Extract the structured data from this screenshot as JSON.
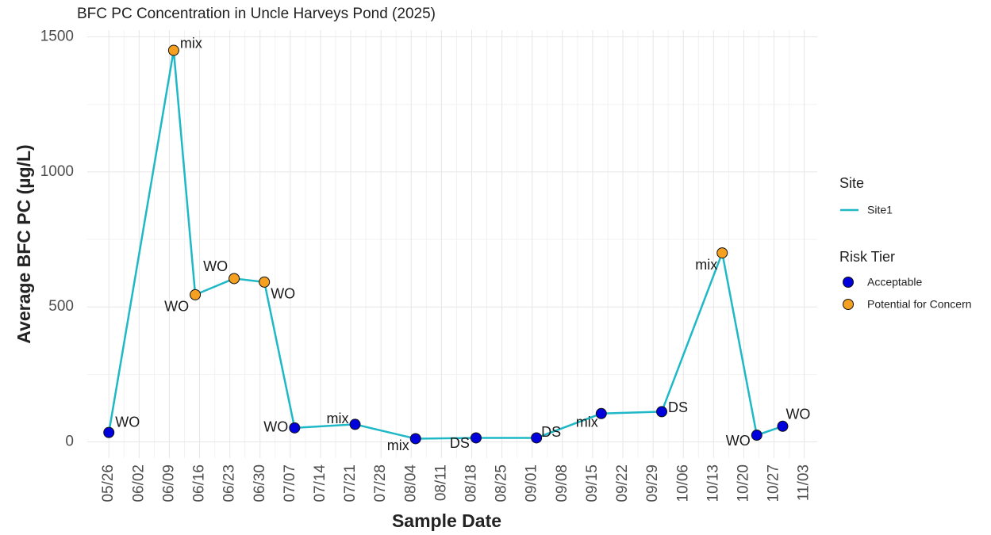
{
  "chart_data": {
    "type": "line",
    "title": "BFC PC Concentration in Uncle Harveys Pond (2025)",
    "x_label": "Sample Date",
    "y_label": "Average BFC PC (µg/L)",
    "x": [
      "05/26",
      "06/10",
      "06/15",
      "06/24",
      "07/01",
      "07/08",
      "07/22",
      "08/05",
      "08/19",
      "09/02",
      "09/17",
      "10/01",
      "10/15",
      "10/23",
      "10/29"
    ],
    "series": [
      {
        "name": "Site1",
        "color": "#1fb8c6",
        "values": [
          35,
          1450,
          545,
          605,
          592,
          52,
          65,
          12,
          15,
          15,
          105,
          112,
          700,
          25,
          58
        ]
      }
    ],
    "point_labels": [
      "WO",
      "mix",
      "WO",
      "WO",
      "WO",
      "WO",
      "mix",
      "mix",
      "DS",
      "DS",
      "mix",
      "DS",
      "mix",
      "WO",
      "WO"
    ],
    "risk_tier": [
      "Acceptable",
      "Potential for Concern",
      "Potential for Concern",
      "Potential for Concern",
      "Potential for Concern",
      "Acceptable",
      "Acceptable",
      "Acceptable",
      "Acceptable",
      "Acceptable",
      "Acceptable",
      "Acceptable",
      "Potential for Concern",
      "Acceptable",
      "Acceptable"
    ],
    "legend_site_title": "Site",
    "legend_tier_title": "Risk Tier",
    "tiers": [
      {
        "name": "Acceptable",
        "color": "#0000dd"
      },
      {
        "name": "Potential for Concern",
        "color": "#f5a020"
      }
    ],
    "xlim": [
      "05/21",
      "11/06"
    ],
    "xticks": [
      "05/26",
      "06/02",
      "06/09",
      "06/16",
      "06/23",
      "06/30",
      "07/07",
      "07/14",
      "07/21",
      "07/28",
      "08/04",
      "08/11",
      "08/18",
      "08/25",
      "09/01",
      "09/08",
      "09/15",
      "09/22",
      "09/29",
      "10/06",
      "10/13",
      "10/20",
      "10/27",
      "11/03"
    ],
    "ylim": [
      -60,
      1525
    ],
    "yticks": [
      0,
      500,
      1000,
      1500
    ],
    "grid": true
  }
}
